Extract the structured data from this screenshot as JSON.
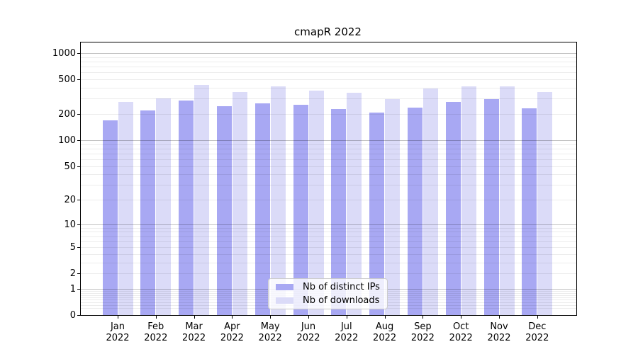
{
  "chart_data": {
    "type": "bar",
    "title": "cmapR 2022",
    "categories": [
      "Jan",
      "Feb",
      "Mar",
      "Apr",
      "May",
      "Jun",
      "Jul",
      "Aug",
      "Sep",
      "Oct",
      "Nov",
      "Dec"
    ],
    "year": "2022",
    "series": [
      {
        "name": "Nb of distinct IPs",
        "color": "#a8a8f3",
        "values": [
          170,
          221,
          288,
          248,
          265,
          257,
          230,
          209,
          239,
          277,
          299,
          234
        ]
      },
      {
        "name": "Nb of downloads",
        "color": "#dbdbf8",
        "values": [
          275,
          304,
          432,
          356,
          416,
          374,
          351,
          297,
          393,
          419,
          414,
          358
        ]
      }
    ],
    "yscale": "log10(value+1)",
    "ylim": [
      0,
      1330
    ],
    "y_ticks": [
      {
        "value": 1000,
        "label": "1000"
      },
      {
        "value": 500,
        "label": "500"
      },
      {
        "value": 200,
        "label": "200"
      },
      {
        "value": 100,
        "label": "100"
      },
      {
        "value": 50,
        "label": "50"
      },
      {
        "value": 20,
        "label": "20"
      },
      {
        "value": 10,
        "label": "10"
      },
      {
        "value": 5,
        "label": "5"
      },
      {
        "value": 2,
        "label": "2"
      },
      {
        "value": 1,
        "label": "1"
      },
      {
        "value": 0,
        "label": "0"
      }
    ],
    "major_grid_values": [
      1,
      10,
      100,
      1000
    ],
    "grid": true,
    "legend": {
      "position": "lower center",
      "labels": [
        "Nb of distinct IPs",
        "Nb of downloads"
      ]
    }
  }
}
